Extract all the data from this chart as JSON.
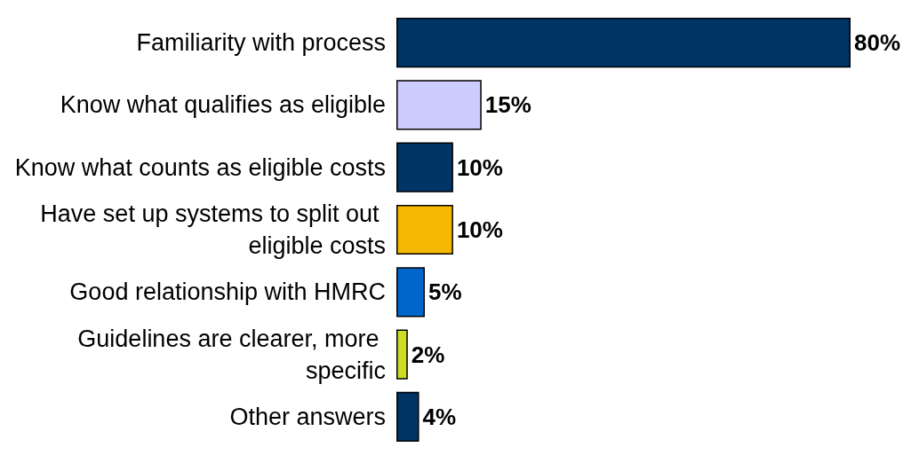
{
  "chart_data": {
    "type": "bar",
    "orientation": "horizontal",
    "categories": [
      "Familiarity with process",
      "Know what qualifies as eligible",
      "Know what counts as eligible costs",
      "Have set up systems to split out eligible costs",
      "Good relationship with HMRC",
      "Guidelines are clearer, more specific",
      "Other answers"
    ],
    "values": [
      80,
      15,
      10,
      10,
      5,
      2,
      4
    ],
    "colors": [
      "#003366",
      "#ccccff",
      "#003366",
      "#f5b800",
      "#0066cc",
      "#ccdd22",
      "#003366"
    ],
    "value_labels": [
      "80%",
      "15%",
      "10%",
      "10%",
      "5%",
      "2%",
      "4%"
    ]
  }
}
